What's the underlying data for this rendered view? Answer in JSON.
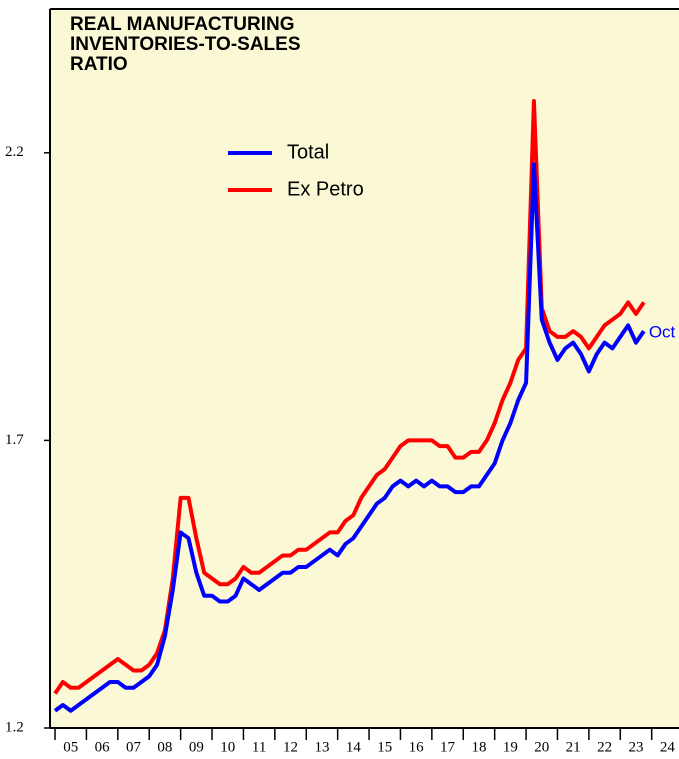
{
  "chart_data": {
    "type": "line",
    "title": [
      "REAL MANUFACTURING",
      "INVENTORIES-TO-SALES",
      "RATIO"
    ],
    "x": [
      2005,
      2005.25,
      2005.5,
      2005.75,
      2006,
      2006.25,
      2006.5,
      2006.75,
      2007,
      2007.25,
      2007.5,
      2007.75,
      2008,
      2008.25,
      2008.5,
      2008.75,
      2009,
      2009.25,
      2009.5,
      2009.75,
      2010,
      2010.25,
      2010.5,
      2010.75,
      2011,
      2011.25,
      2011.5,
      2011.75,
      2012,
      2012.25,
      2012.5,
      2012.75,
      2013,
      2013.25,
      2013.5,
      2013.75,
      2014,
      2014.25,
      2014.5,
      2014.75,
      2015,
      2015.25,
      2015.5,
      2015.75,
      2016,
      2016.25,
      2016.5,
      2016.75,
      2017,
      2017.25,
      2017.5,
      2017.75,
      2018,
      2018.25,
      2018.5,
      2018.75,
      2019,
      2019.25,
      2019.5,
      2019.75,
      2020,
      2020.25,
      2020.5,
      2020.75,
      2021,
      2021.25,
      2021.5,
      2021.75,
      2022,
      2022.25,
      2022.5,
      2022.75,
      2023,
      2023.25,
      2023.5,
      2023.75
    ],
    "series": [
      {
        "name": "Total",
        "color": "#0000ff",
        "values": [
          1.23,
          1.24,
          1.23,
          1.24,
          1.25,
          1.26,
          1.27,
          1.28,
          1.28,
          1.27,
          1.27,
          1.28,
          1.29,
          1.31,
          1.36,
          1.44,
          1.54,
          1.53,
          1.47,
          1.43,
          1.43,
          1.42,
          1.42,
          1.43,
          1.46,
          1.45,
          1.44,
          1.45,
          1.46,
          1.47,
          1.47,
          1.48,
          1.48,
          1.49,
          1.5,
          1.51,
          1.5,
          1.52,
          1.53,
          1.55,
          1.57,
          1.59,
          1.6,
          1.62,
          1.63,
          1.62,
          1.63,
          1.62,
          1.63,
          1.62,
          1.62,
          1.61,
          1.61,
          1.62,
          1.62,
          1.64,
          1.66,
          1.7,
          1.73,
          1.77,
          1.8,
          2.18,
          1.91,
          1.87,
          1.84,
          1.86,
          1.87,
          1.85,
          1.82,
          1.85,
          1.87,
          1.86,
          1.88,
          1.9,
          1.87,
          1.89
        ]
      },
      {
        "name": "Ex Petro",
        "color": "#ff0000",
        "values": [
          1.26,
          1.28,
          1.27,
          1.27,
          1.28,
          1.29,
          1.3,
          1.31,
          1.32,
          1.31,
          1.3,
          1.3,
          1.31,
          1.33,
          1.37,
          1.46,
          1.6,
          1.6,
          1.53,
          1.47,
          1.46,
          1.45,
          1.45,
          1.46,
          1.48,
          1.47,
          1.47,
          1.48,
          1.49,
          1.5,
          1.5,
          1.51,
          1.51,
          1.52,
          1.53,
          1.54,
          1.54,
          1.56,
          1.57,
          1.6,
          1.62,
          1.64,
          1.65,
          1.67,
          1.69,
          1.7,
          1.7,
          1.7,
          1.7,
          1.69,
          1.69,
          1.67,
          1.67,
          1.68,
          1.68,
          1.7,
          1.73,
          1.77,
          1.8,
          1.84,
          1.86,
          2.29,
          1.93,
          1.89,
          1.88,
          1.88,
          1.89,
          1.88,
          1.86,
          1.88,
          1.9,
          1.91,
          1.92,
          1.94,
          1.92,
          1.94
        ]
      }
    ],
    "annotation": "Oct",
    "xlim": [
      2004.84,
      2024.87
    ],
    "xticks": [
      {
        "value": 2005,
        "label": "05"
      },
      {
        "value": 2006,
        "label": "06"
      },
      {
        "value": 2007,
        "label": "07"
      },
      {
        "value": 2008,
        "label": "08"
      },
      {
        "value": 2009,
        "label": "09"
      },
      {
        "value": 2010,
        "label": "10"
      },
      {
        "value": 2011,
        "label": "11"
      },
      {
        "value": 2012,
        "label": "12"
      },
      {
        "value": 2013,
        "label": "13"
      },
      {
        "value": 2014,
        "label": "14"
      },
      {
        "value": 2015,
        "label": "15"
      },
      {
        "value": 2016,
        "label": "16"
      },
      {
        "value": 2017,
        "label": "17"
      },
      {
        "value": 2018,
        "label": "18"
      },
      {
        "value": 2019,
        "label": "19"
      },
      {
        "value": 2020,
        "label": "20"
      },
      {
        "value": 2021,
        "label": "21"
      },
      {
        "value": 2022,
        "label": "22"
      },
      {
        "value": 2023,
        "label": "23"
      },
      {
        "value": 2024,
        "label": "24"
      }
    ],
    "ylim": [
      1.2,
      2.45
    ],
    "yticks": [
      1.2,
      1.7,
      2.2
    ],
    "background": "#fbf8d6"
  }
}
